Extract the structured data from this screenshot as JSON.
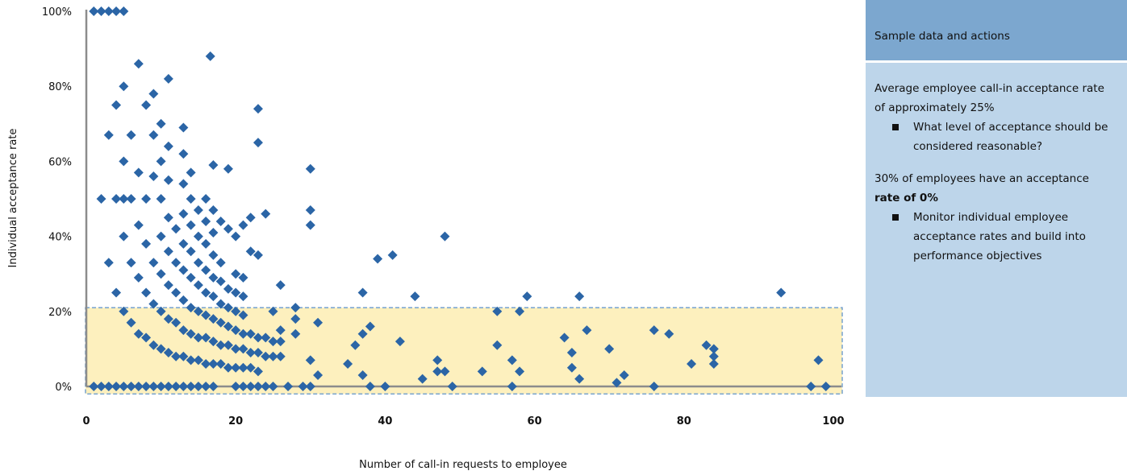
{
  "chart_data": {
    "type": "scatter",
    "xlabel": "Number of call-in requests to employee",
    "ylabel": "Individual acceptance rate",
    "xlim": [
      0,
      100
    ],
    "ylim": [
      0,
      100
    ],
    "x_ticks": [
      "0",
      "20",
      "40",
      "60",
      "80",
      "100"
    ],
    "y_ticks": [
      "0%",
      "20%",
      "40%",
      "60%",
      "80%",
      "100%"
    ],
    "highlight_band": {
      "y_from": -2,
      "y_to": 21,
      "color": "#fdf0be",
      "border": "#7ea7cf"
    },
    "marker_color": "#2b65a6",
    "points": [
      [
        1,
        100
      ],
      [
        2,
        100
      ],
      [
        3,
        100
      ],
      [
        4,
        100
      ],
      [
        5,
        100
      ],
      [
        2,
        50
      ],
      [
        3,
        67
      ],
      [
        3,
        33
      ],
      [
        4,
        75
      ],
      [
        4,
        50
      ],
      [
        4,
        25
      ],
      [
        5,
        80
      ],
      [
        5,
        60
      ],
      [
        5,
        50
      ],
      [
        5,
        40
      ],
      [
        5,
        20
      ],
      [
        6,
        67
      ],
      [
        6,
        50
      ],
      [
        6,
        33
      ],
      [
        6,
        17
      ],
      [
        7,
        86
      ],
      [
        7,
        57
      ],
      [
        7,
        43
      ],
      [
        7,
        29
      ],
      [
        7,
        14
      ],
      [
        8,
        75
      ],
      [
        8,
        50
      ],
      [
        8,
        38
      ],
      [
        8,
        25
      ],
      [
        8,
        13
      ],
      [
        9,
        78
      ],
      [
        9,
        67
      ],
      [
        9,
        56
      ],
      [
        9,
        33
      ],
      [
        9,
        22
      ],
      [
        9,
        11
      ],
      [
        10,
        70
      ],
      [
        10,
        60
      ],
      [
        10,
        50
      ],
      [
        10,
        40
      ],
      [
        10,
        30
      ],
      [
        10,
        20
      ],
      [
        10,
        10
      ],
      [
        11,
        82
      ],
      [
        11,
        64
      ],
      [
        11,
        55
      ],
      [
        11,
        45
      ],
      [
        11,
        36
      ],
      [
        11,
        27
      ],
      [
        11,
        18
      ],
      [
        11,
        9
      ],
      [
        12,
        42
      ],
      [
        12,
        33
      ],
      [
        12,
        25
      ],
      [
        12,
        17
      ],
      [
        12,
        8
      ],
      [
        13,
        69
      ],
      [
        13,
        62
      ],
      [
        13,
        54
      ],
      [
        13,
        46
      ],
      [
        13,
        38
      ],
      [
        13,
        31
      ],
      [
        13,
        23
      ],
      [
        13,
        15
      ],
      [
        13,
        8
      ],
      [
        14,
        57
      ],
      [
        14,
        50
      ],
      [
        14,
        43
      ],
      [
        14,
        36
      ],
      [
        14,
        29
      ],
      [
        14,
        21
      ],
      [
        14,
        14
      ],
      [
        14,
        7
      ],
      [
        15,
        47
      ],
      [
        15,
        40
      ],
      [
        15,
        33
      ],
      [
        15,
        27
      ],
      [
        15,
        20
      ],
      [
        15,
        13
      ],
      [
        15,
        7
      ],
      [
        16,
        50
      ],
      [
        16,
        44
      ],
      [
        16,
        38
      ],
      [
        16,
        31
      ],
      [
        16,
        25
      ],
      [
        16,
        19
      ],
      [
        16,
        13
      ],
      [
        16,
        6
      ],
      [
        16.6,
        88
      ],
      [
        17,
        59
      ],
      [
        17,
        47
      ],
      [
        17,
        41
      ],
      [
        17,
        35
      ],
      [
        17,
        29
      ],
      [
        17,
        24
      ],
      [
        17,
        18
      ],
      [
        17,
        12
      ],
      [
        17,
        6
      ],
      [
        18,
        44
      ],
      [
        18,
        33
      ],
      [
        18,
        28
      ],
      [
        18,
        22
      ],
      [
        18,
        17
      ],
      [
        18,
        11
      ],
      [
        18,
        6
      ],
      [
        19,
        58
      ],
      [
        19,
        42
      ],
      [
        19,
        26
      ],
      [
        19,
        21
      ],
      [
        19,
        16
      ],
      [
        19,
        11
      ],
      [
        19,
        5
      ],
      [
        20,
        40
      ],
      [
        20,
        30
      ],
      [
        20,
        25
      ],
      [
        20,
        20
      ],
      [
        20,
        15
      ],
      [
        20,
        10
      ],
      [
        20,
        5
      ],
      [
        21,
        43
      ],
      [
        21,
        29
      ],
      [
        21,
        24
      ],
      [
        21,
        19
      ],
      [
        21,
        14
      ],
      [
        21,
        10
      ],
      [
        21,
        5
      ],
      [
        22,
        45
      ],
      [
        22,
        36
      ],
      [
        22,
        14
      ],
      [
        22,
        9
      ],
      [
        22,
        5
      ],
      [
        23,
        74
      ],
      [
        23,
        65
      ],
      [
        23,
        35
      ],
      [
        23,
        13
      ],
      [
        23,
        9
      ],
      [
        23,
        4
      ],
      [
        24,
        46
      ],
      [
        24,
        13
      ],
      [
        24,
        8
      ],
      [
        25,
        20
      ],
      [
        25,
        12
      ],
      [
        25,
        8
      ],
      [
        26,
        27
      ],
      [
        26,
        15
      ],
      [
        26,
        12
      ],
      [
        26,
        8
      ],
      [
        28,
        21
      ],
      [
        28,
        18
      ],
      [
        28,
        14
      ],
      [
        29,
        0
      ],
      [
        30,
        58
      ],
      [
        30,
        47
      ],
      [
        30,
        43
      ],
      [
        30,
        7
      ],
      [
        31,
        17
      ],
      [
        31,
        3
      ],
      [
        35,
        6
      ],
      [
        36,
        11
      ],
      [
        37,
        25
      ],
      [
        37,
        14
      ],
      [
        37,
        3
      ],
      [
        38,
        16
      ],
      [
        38,
        0
      ],
      [
        39,
        34
      ],
      [
        40,
        0
      ],
      [
        41,
        35
      ],
      [
        42,
        12
      ],
      [
        44,
        24
      ],
      [
        45,
        2
      ],
      [
        47,
        7
      ],
      [
        47,
        4
      ],
      [
        48,
        40
      ],
      [
        48,
        4
      ],
      [
        49,
        0
      ],
      [
        53,
        4
      ],
      [
        55,
        20
      ],
      [
        55,
        11
      ],
      [
        57,
        7
      ],
      [
        57,
        0
      ],
      [
        58,
        4
      ],
      [
        58,
        20
      ],
      [
        59,
        24
      ],
      [
        64,
        13
      ],
      [
        65,
        9
      ],
      [
        65,
        5
      ],
      [
        66,
        24
      ],
      [
        66,
        2
      ],
      [
        67,
        15
      ],
      [
        70,
        10
      ],
      [
        71,
        1
      ],
      [
        72,
        3
      ],
      [
        76,
        15
      ],
      [
        76,
        0
      ],
      [
        78,
        14
      ],
      [
        81,
        6
      ],
      [
        83,
        11
      ],
      [
        84,
        10
      ],
      [
        84,
        8
      ],
      [
        84,
        6
      ],
      [
        93,
        25
      ],
      [
        97,
        0
      ],
      [
        98,
        7
      ],
      [
        99,
        0
      ],
      [
        1,
        0
      ],
      [
        2,
        0
      ],
      [
        3,
        0
      ],
      [
        4,
        0
      ],
      [
        5,
        0
      ],
      [
        6,
        0
      ],
      [
        7,
        0
      ],
      [
        8,
        0
      ],
      [
        9,
        0
      ],
      [
        10,
        0
      ],
      [
        11,
        0
      ],
      [
        12,
        0
      ],
      [
        13,
        0
      ],
      [
        14,
        0
      ],
      [
        15,
        0
      ],
      [
        16,
        0
      ],
      [
        17,
        0
      ],
      [
        20,
        0
      ],
      [
        21,
        0
      ],
      [
        22,
        0
      ],
      [
        23,
        0
      ],
      [
        24,
        0
      ],
      [
        25,
        0
      ],
      [
        27,
        0
      ],
      [
        30,
        0
      ]
    ]
  },
  "panel": {
    "header": "Sample data and actions",
    "block1_text": "Average employee call-in acceptance rate of approximately 25%",
    "block1_bullet": "What level of acceptance should be considered reasonable?",
    "block2_text_a": "30% of employees have an acceptance",
    "block2_text_b": "rate of 0%",
    "block2_bullet": "Monitor individual employee acceptance rates and build into performance objectives"
  }
}
